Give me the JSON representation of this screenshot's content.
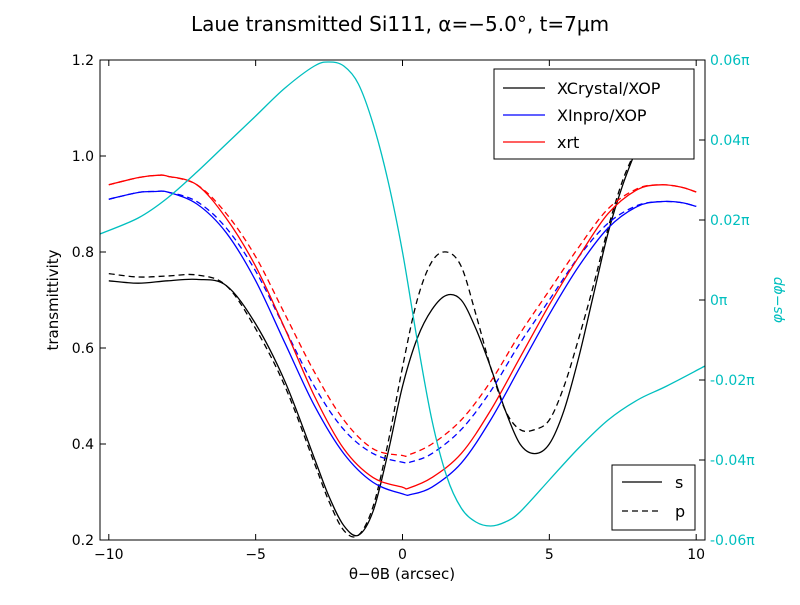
{
  "chart_data": {
    "type": "line",
    "title": "Laue transmitted Si111, α=−5.0°, t=7μm",
    "xlabel": "θ−θB (arcsec)",
    "ylabel": "transmittivity",
    "ylabel_right": "φs−φp",
    "xlim": [
      -10.3,
      10.3
    ],
    "ylim": [
      0.2,
      1.2
    ],
    "ylim_right": [
      -0.06,
      0.06
    ],
    "xticks": [
      -10,
      -5,
      0,
      5,
      10
    ],
    "xtick_labels": [
      "−10",
      "−5",
      "0",
      "5",
      "10"
    ],
    "yticks": [
      0.2,
      0.4,
      0.6,
      0.8,
      1.0,
      1.2
    ],
    "ytick_labels": [
      "0.2",
      "0.4",
      "0.6",
      "0.8",
      "1.0",
      "1.2"
    ],
    "yticks_right": [
      -0.06,
      -0.04,
      -0.02,
      0.0,
      0.02,
      0.04,
      0.06
    ],
    "ytick_labels_right": [
      "-0.06π",
      "-0.04π",
      "-0.02π",
      "0π",
      "0.02π",
      "0.04π",
      "0.06π"
    ],
    "grid": false,
    "legend_series": {
      "placement": "top-right",
      "entries": [
        "XCrystal/XOP",
        "XInpro/XOP",
        "xrt"
      ]
    },
    "legend_pol": {
      "placement": "bottom-right",
      "entries": [
        "s",
        "p"
      ]
    },
    "colors": {
      "xcrystal": "#000000",
      "xinpro": "#0000ff",
      "xrt": "#ff0000",
      "phase": "#00bfbf"
    },
    "series": [
      {
        "name": "XCrystal/XOP",
        "polarization": "s",
        "color": "#000000",
        "dash": "solid",
        "x": [
          -10,
          -9,
          -8,
          -7,
          -6,
          -5,
          -4,
          -3,
          -2.5,
          -2,
          -1.5,
          -1,
          -0.5,
          0,
          0.5,
          1,
          1.5,
          2,
          2.5,
          3,
          3.5,
          4,
          4.5,
          5,
          5.5,
          6,
          6.5,
          7,
          7.5,
          8
        ],
        "y": [
          0.74,
          0.735,
          0.74,
          0.743,
          0.73,
          0.65,
          0.53,
          0.37,
          0.29,
          0.23,
          0.21,
          0.26,
          0.38,
          0.52,
          0.62,
          0.68,
          0.71,
          0.7,
          0.64,
          0.56,
          0.47,
          0.4,
          0.38,
          0.4,
          0.47,
          0.58,
          0.71,
          0.84,
          0.94,
          1.02
        ]
      },
      {
        "name": "XCrystal/XOP",
        "polarization": "p",
        "color": "#000000",
        "dash": "dashed",
        "x": [
          -10,
          -9,
          -8,
          -7,
          -6,
          -5,
          -4,
          -3,
          -2.5,
          -2,
          -1.5,
          -1,
          -0.5,
          0,
          0.5,
          1,
          1.5,
          2,
          2.5,
          3,
          3.5,
          4,
          4.5,
          5,
          5.5,
          6,
          6.5,
          7,
          7.5,
          8
        ],
        "y": [
          0.755,
          0.748,
          0.75,
          0.752,
          0.73,
          0.64,
          0.52,
          0.36,
          0.28,
          0.22,
          0.21,
          0.27,
          0.4,
          0.56,
          0.7,
          0.78,
          0.8,
          0.77,
          0.67,
          0.56,
          0.47,
          0.43,
          0.43,
          0.45,
          0.52,
          0.62,
          0.73,
          0.85,
          0.95,
          1.02
        ]
      },
      {
        "name": "XInpro/XOP",
        "polarization": "s",
        "color": "#0000ff",
        "dash": "solid",
        "x": [
          -10,
          -9,
          -8.4,
          -8,
          -7,
          -6,
          -5,
          -4,
          -3,
          -2,
          -1,
          0,
          0.3,
          1,
          2,
          3,
          4,
          5,
          6,
          7,
          8,
          8.8,
          9.5,
          10
        ],
        "y": [
          0.91,
          0.924,
          0.926,
          0.925,
          0.9,
          0.84,
          0.74,
          0.61,
          0.48,
          0.38,
          0.32,
          0.296,
          0.295,
          0.31,
          0.36,
          0.45,
          0.56,
          0.67,
          0.77,
          0.85,
          0.895,
          0.905,
          0.903,
          0.895
        ]
      },
      {
        "name": "XInpro/XOP",
        "polarization": "p",
        "color": "#0000ff",
        "dash": "dashed",
        "x": [
          -10,
          -9,
          -8.4,
          -8,
          -7,
          -6,
          -5,
          -4,
          -3,
          -2,
          -1,
          0,
          0.3,
          1,
          2,
          3,
          4,
          5,
          6,
          7,
          8,
          8.8,
          9.5,
          10
        ],
        "y": [
          0.91,
          0.924,
          0.926,
          0.925,
          0.905,
          0.85,
          0.76,
          0.64,
          0.52,
          0.43,
          0.38,
          0.362,
          0.363,
          0.38,
          0.43,
          0.51,
          0.61,
          0.7,
          0.79,
          0.86,
          0.897,
          0.905,
          0.903,
          0.895
        ]
      },
      {
        "name": "xrt",
        "polarization": "s",
        "color": "#ff0000",
        "dash": "solid",
        "x": [
          -10,
          -9,
          -8.3,
          -8,
          -7,
          -6,
          -5,
          -4,
          -3,
          -2,
          -1,
          0,
          0.2,
          1,
          2,
          3,
          4,
          5,
          6,
          7,
          8,
          8.8,
          9.5,
          10
        ],
        "y": [
          0.94,
          0.955,
          0.96,
          0.958,
          0.94,
          0.87,
          0.77,
          0.64,
          0.5,
          0.39,
          0.33,
          0.31,
          0.308,
          0.33,
          0.38,
          0.47,
          0.58,
          0.69,
          0.79,
          0.88,
          0.93,
          0.94,
          0.935,
          0.925
        ]
      },
      {
        "name": "xrt",
        "polarization": "p",
        "color": "#ff0000",
        "dash": "dashed",
        "x": [
          -10,
          -9,
          -8.3,
          -8,
          -7,
          -6,
          -5,
          -4,
          -3,
          -2,
          -1,
          0,
          0.2,
          1,
          2,
          3,
          4,
          5,
          6,
          7,
          8,
          8.8,
          9.5,
          10
        ],
        "y": [
          0.94,
          0.955,
          0.96,
          0.958,
          0.94,
          0.88,
          0.79,
          0.67,
          0.55,
          0.45,
          0.39,
          0.376,
          0.377,
          0.4,
          0.45,
          0.53,
          0.63,
          0.72,
          0.81,
          0.89,
          0.932,
          0.94,
          0.935,
          0.925
        ]
      },
      {
        "name": "phase",
        "axis": "right",
        "color": "#00bfbf",
        "dash": "solid",
        "x": [
          -10.3,
          -9,
          -8,
          -7,
          -6,
          -5,
          -4,
          -3,
          -2.5,
          -2,
          -1.5,
          -1,
          -0.5,
          0,
          0.5,
          1,
          1.5,
          2,
          2.5,
          3,
          3.5,
          4,
          5,
          6,
          7,
          8,
          9,
          10.3
        ],
        "y": [
          0.0165,
          0.0205,
          0.0255,
          0.032,
          0.039,
          0.046,
          0.053,
          0.0585,
          0.0595,
          0.0585,
          0.054,
          0.044,
          0.03,
          0.012,
          -0.01,
          -0.03,
          -0.044,
          -0.052,
          -0.0555,
          -0.0565,
          -0.0555,
          -0.053,
          -0.045,
          -0.037,
          -0.03,
          -0.025,
          -0.0215,
          -0.0165
        ]
      }
    ]
  }
}
